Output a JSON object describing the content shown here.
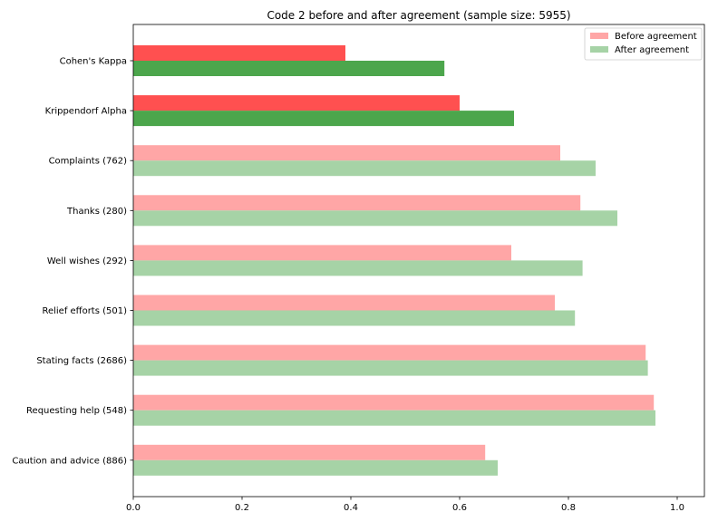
{
  "chart_data": {
    "type": "bar",
    "orientation": "horizontal",
    "title": "Code 2 before and after agreement (sample size: 5955)",
    "xlabel": "",
    "ylabel": "",
    "xlim": [
      0,
      1.05
    ],
    "xticks": [
      "0.0",
      "0.2",
      "0.4",
      "0.6",
      "0.8",
      "1.0"
    ],
    "grid": false,
    "legend_position": "top-right",
    "categories": [
      "Cohen's Kappa",
      "Krippendorf Alpha",
      "Complaints  (762)",
      "Thanks  (280)",
      "Well wishes  (292)",
      "Relief efforts  (501)",
      "Stating facts  (2686)",
      "Requesting help  (548)",
      "Caution and advice  (886)"
    ],
    "series": [
      {
        "name": "Before agreement",
        "color": "#ffa6a6",
        "highlight_color": "#ff5050",
        "values": [
          0.39,
          0.6,
          0.785,
          0.822,
          0.695,
          0.775,
          0.942,
          0.957,
          0.647
        ]
      },
      {
        "name": "After agreement",
        "color": "#a6d3a6",
        "highlight_color": "#4ca64c",
        "values": [
          0.572,
          0.7,
          0.85,
          0.89,
          0.826,
          0.812,
          0.946,
          0.96,
          0.67
        ]
      }
    ],
    "highlighted_categories": [
      "Cohen's Kappa",
      "Krippendorf Alpha"
    ]
  }
}
